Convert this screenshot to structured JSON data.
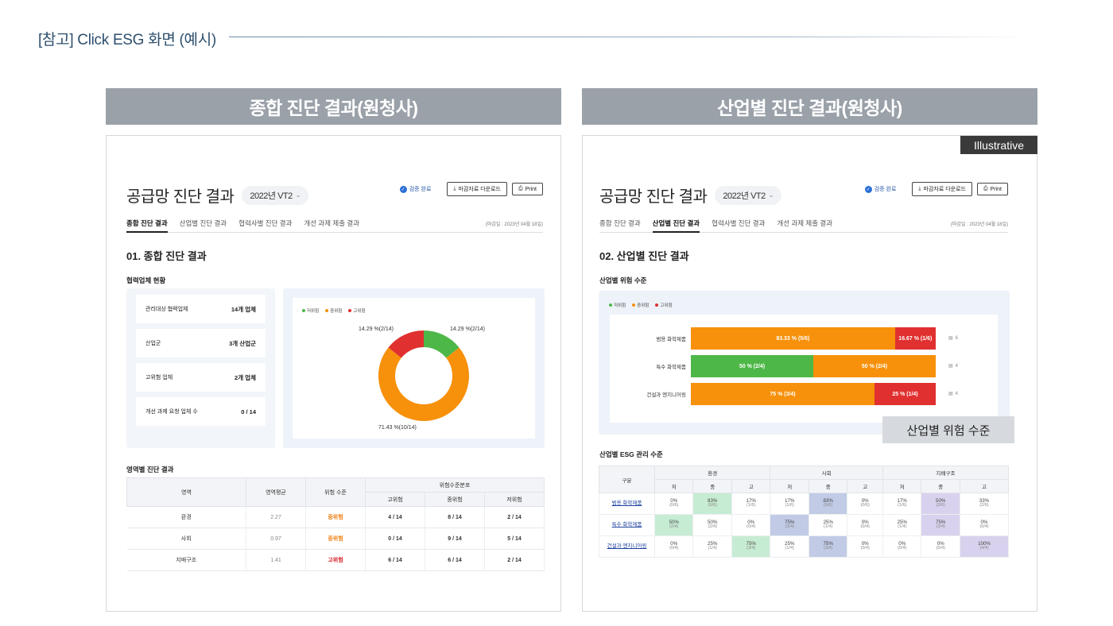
{
  "header": {
    "title": "[참고] Click ESG 화면 (예시)"
  },
  "left": {
    "banner": "종합 진단 결과(원청사)",
    "page_title": "공급망 진단 결과",
    "period": "2022년 VT2",
    "verify_label": "검증 완료",
    "download_label": "마감자료 다운로드",
    "print_label": "Print",
    "tabs": [
      "종합 진단 결과",
      "산업별 진단 결과",
      "협력사별 진단 결과",
      "개선 과제 제출 결과"
    ],
    "date_note": "(마감일 : 2023년 04월 18일)",
    "section_title": "01. 종합 진단 결과",
    "status_title": "협력업체 현황",
    "stats": [
      {
        "label": "관리대상 협력업체",
        "value": "14개 업체"
      },
      {
        "label": "산업군",
        "value": "3개 산업군"
      },
      {
        "label": "고위험 업체",
        "value": "2개 업체"
      },
      {
        "label": "개선 과제 요청 업체 수",
        "value": "0 / 14"
      }
    ],
    "legend": [
      "저위험",
      "중위험",
      "고위험"
    ],
    "donut_labels": {
      "low": "14.29 %(2/14)",
      "high": "14.29 %(2/14)",
      "mid": "71.43 %(10/14)"
    },
    "domain_title": "영역별 진단 결과",
    "table_headers": {
      "domain": "영역",
      "avg": "영역평균",
      "level": "위험 수준",
      "dist": "위험수준분포",
      "high": "고위험",
      "mid": "중위험",
      "low": "저위험"
    },
    "table_rows": [
      {
        "domain": "환경",
        "avg": "2.27",
        "level": "중위험",
        "high": "4 / 14",
        "mid": "8 / 14",
        "low": "2 / 14"
      },
      {
        "domain": "사회",
        "avg": "0.97",
        "level": "중위험",
        "high": "0 / 14",
        "mid": "9 / 14",
        "low": "5 / 14"
      },
      {
        "domain": "지배구조",
        "avg": "1.41",
        "level": "고위험",
        "high": "6 / 14",
        "mid": "6 / 14",
        "low": "2 / 14"
      }
    ]
  },
  "right": {
    "banner": "산업별 진단 결과(원청사)",
    "badge": "Illustrative",
    "page_title": "공급망 진단 결과",
    "period": "2022년 VT2",
    "verify_label": "검증 완료",
    "download_label": "마감자료 다운로드",
    "print_label": "Print",
    "tabs": [
      "종합 진단 결과",
      "산업별 진단 결과",
      "협력사별 진단 결과",
      "개선 과제 제출 결과"
    ],
    "date_note": "(마감일 : 2023년 04월 18일)",
    "section_title": "02. 산업별 진단 결과",
    "risk_title": "산업별 위험 수준",
    "legend": [
      "저위험",
      "중위험",
      "고위험"
    ],
    "bars": [
      {
        "name": "범용 화학제품",
        "count": "6",
        "segments": [
          {
            "level": "mid",
            "fraction": 0.8333,
            "label": "83.33 % (5/6)"
          },
          {
            "level": "high",
            "fraction": 0.1667,
            "label": "16.67 % (1/6)"
          }
        ]
      },
      {
        "name": "특수 화학제품",
        "count": "4",
        "segments": [
          {
            "level": "low",
            "fraction": 0.5,
            "label": "50 % (2/4)"
          },
          {
            "level": "mid",
            "fraction": 0.5,
            "label": "50 % (2/4)"
          }
        ]
      },
      {
        "name": "건설과 엔지니어링",
        "count": "4",
        "segments": [
          {
            "level": "mid",
            "fraction": 0.75,
            "label": "75 % (3/4)"
          },
          {
            "level": "high",
            "fraction": 0.25,
            "label": "25 % (1/4)"
          }
        ]
      }
    ],
    "overlay_label": "산업별 위험 수준",
    "esg_title": "산업별 ESG 관리 수준",
    "esg_headers": {
      "category": "구분",
      "groups": [
        "환경",
        "사회",
        "지배구조"
      ],
      "levels": [
        "저",
        "중",
        "고"
      ]
    },
    "esg_rows": [
      {
        "name": "범용 화학제품",
        "cells": [
          [
            "0%",
            "(0/6)"
          ],
          [
            "83%",
            "(5/6)"
          ],
          [
            "17%",
            "(1/6)"
          ],
          [
            "17%",
            "(1/6)"
          ],
          [
            "83%",
            "(5/6)"
          ],
          [
            "0%",
            "(0/6)"
          ],
          [
            "17%",
            "(1/6)"
          ],
          [
            "50%",
            "(3/6)"
          ],
          [
            "33%",
            "(2/6)"
          ]
        ]
      },
      {
        "name": "특수 화학제품",
        "cells": [
          [
            "50%",
            "(2/4)"
          ],
          [
            "50%",
            "(2/4)"
          ],
          [
            "0%",
            "(0/4)"
          ],
          [
            "75%",
            "(3/4)"
          ],
          [
            "25%",
            "(1/4)"
          ],
          [
            "0%",
            "(0/4)"
          ],
          [
            "25%",
            "(1/4)"
          ],
          [
            "75%",
            "(3/4)"
          ],
          [
            "0%",
            "(0/4)"
          ]
        ]
      },
      {
        "name": "건설과 엔지니어링",
        "cells": [
          [
            "0%",
            "(0/4)"
          ],
          [
            "25%",
            "(1/4)"
          ],
          [
            "75%",
            "(3/4)"
          ],
          [
            "25%",
            "(1/4)"
          ],
          [
            "75%",
            "(3/4)"
          ],
          [
            "0%",
            "(0/4)"
          ],
          [
            "0%",
            "(0/4)"
          ],
          [
            "0%",
            "(0/4)"
          ],
          [
            "100%",
            "(4/4)"
          ]
        ]
      }
    ]
  },
  "colors": {
    "low": "#4db848",
    "mid": "#f7900a",
    "high": "#e0302f",
    "env": "#c7ecd4",
    "soc": "#c1cbe6",
    "gov": "#d9d2ee"
  },
  "chart_data": {
    "type": "pie",
    "categories": [
      "저위험",
      "중위험",
      "고위험"
    ],
    "values": [
      2,
      10,
      2
    ]
  }
}
